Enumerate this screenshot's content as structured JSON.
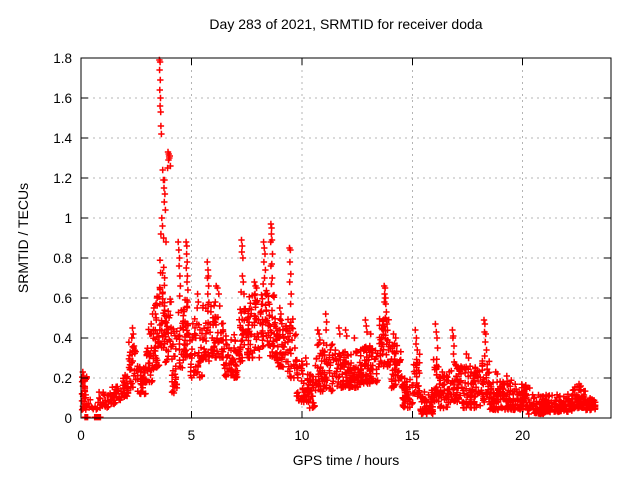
{
  "window": {
    "title": "Day 283 of 2021, SRMTID for receiver doda"
  },
  "chart_data": {
    "type": "scatter",
    "title": "Day 283 of 2021, SRMTID for receiver doda",
    "xlabel": "GPS time / hours",
    "ylabel": "SRMTID / TECUs",
    "xlim": [
      0,
      24
    ],
    "ylim": [
      0,
      1.8
    ],
    "xticks": [
      0,
      5,
      10,
      15,
      20
    ],
    "xtick_labels": [
      "0",
      "5",
      "10",
      "15",
      "20"
    ],
    "yticks": [
      0,
      0.2,
      0.4,
      0.6,
      0.8,
      1.0,
      1.2,
      1.4,
      1.6,
      1.8
    ],
    "ytick_labels": [
      "0",
      "0.2",
      "0.4",
      "0.6",
      "0.8",
      "1",
      "1.2",
      "1.4",
      "1.6",
      "1.8"
    ],
    "grid": true,
    "grid_style": "dashed",
    "grid_color": "#b4b4b4",
    "marker": "plus",
    "marker_color": "#ff0000",
    "border_color": "#000000",
    "legend": "none",
    "noise_seed": 42,
    "column_step_hours": 0.045,
    "points": [
      [
        0.08,
        0.23
      ],
      [
        0.12,
        0.21
      ],
      [
        0.17,
        0.19
      ],
      [
        0.1,
        0.16
      ],
      [
        0.05,
        0.12
      ],
      [
        0.2,
        0.1
      ],
      [
        0.14,
        0.07
      ],
      [
        0.18,
        0.004
      ],
      [
        0.22,
        0.004
      ],
      [
        0.26,
        0.004
      ],
      [
        0.3,
        0.004
      ],
      [
        0.62,
        0.004
      ],
      [
        0.66,
        0.004
      ],
      [
        0.72,
        0.004
      ],
      [
        0.78,
        0.004
      ],
      [
        0.84,
        0.004
      ],
      [
        0.88,
        0.004
      ],
      [
        2.3,
        0.4
      ],
      [
        2.33,
        0.45
      ],
      [
        2.37,
        0.42
      ],
      [
        2.4,
        0.36
      ],
      [
        3.12,
        0.42
      ],
      [
        3.18,
        0.47
      ],
      [
        3.24,
        0.52
      ],
      [
        3.3,
        0.55
      ],
      [
        3.37,
        0.52
      ],
      [
        3.45,
        0.6
      ],
      [
        3.55,
        1.79
      ],
      [
        3.58,
        1.78
      ],
      [
        3.56,
        1.74
      ],
      [
        3.59,
        1.69
      ],
      [
        3.57,
        1.64
      ],
      [
        3.6,
        1.6
      ],
      [
        3.58,
        1.56
      ],
      [
        3.61,
        1.53
      ],
      [
        3.62,
        1.46
      ],
      [
        3.64,
        1.42
      ],
      [
        3.7,
        1.24
      ],
      [
        3.73,
        1.19
      ],
      [
        3.78,
        1.19
      ],
      [
        3.76,
        1.15
      ],
      [
        3.8,
        1.12
      ],
      [
        3.77,
        1.08
      ],
      [
        3.82,
        1.04
      ],
      [
        3.66,
        1.0
      ],
      [
        3.69,
        0.96
      ],
      [
        3.62,
        0.92
      ],
      [
        3.74,
        0.9
      ],
      [
        3.85,
        0.88
      ],
      [
        3.94,
        1.33
      ],
      [
        3.97,
        1.32
      ],
      [
        3.99,
        1.31
      ],
      [
        4.02,
        1.31
      ],
      [
        4.0,
        1.3
      ],
      [
        3.96,
        1.29
      ],
      [
        4.05,
        1.26
      ],
      [
        3.92,
        1.25
      ],
      [
        4.4,
        0.88
      ],
      [
        4.43,
        0.84
      ],
      [
        4.46,
        0.8
      ],
      [
        4.44,
        0.76
      ],
      [
        4.48,
        0.71
      ],
      [
        4.5,
        0.66
      ],
      [
        4.47,
        0.61
      ],
      [
        4.76,
        0.88
      ],
      [
        4.79,
        0.86
      ],
      [
        4.78,
        0.82
      ],
      [
        4.81,
        0.78
      ],
      [
        4.77,
        0.75
      ],
      [
        4.82,
        0.71
      ],
      [
        4.8,
        0.68
      ],
      [
        4.84,
        0.64
      ],
      [
        4.83,
        0.58
      ],
      [
        5.28,
        0.62
      ],
      [
        5.31,
        0.58
      ],
      [
        5.26,
        0.55
      ],
      [
        5.72,
        0.78
      ],
      [
        5.75,
        0.74
      ],
      [
        5.77,
        0.71
      ],
      [
        5.73,
        0.7
      ],
      [
        5.78,
        0.66
      ],
      [
        5.74,
        0.62
      ],
      [
        6.12,
        0.66
      ],
      [
        6.18,
        0.65
      ],
      [
        6.24,
        0.62
      ],
      [
        6.08,
        0.58
      ],
      [
        6.28,
        0.56
      ],
      [
        7.27,
        0.89
      ],
      [
        7.3,
        0.86
      ],
      [
        7.28,
        0.83
      ],
      [
        7.33,
        0.8
      ],
      [
        7.31,
        0.71
      ],
      [
        7.35,
        0.68
      ],
      [
        7.25,
        0.63
      ],
      [
        7.38,
        0.62
      ],
      [
        7.85,
        0.68
      ],
      [
        7.9,
        0.66
      ],
      [
        7.95,
        0.65
      ],
      [
        7.88,
        0.62
      ],
      [
        8.27,
        0.88
      ],
      [
        8.3,
        0.85
      ],
      [
        8.33,
        0.82
      ],
      [
        8.28,
        0.78
      ],
      [
        8.35,
        0.74
      ],
      [
        8.31,
        0.7
      ],
      [
        8.25,
        0.67
      ],
      [
        8.6,
        0.97
      ],
      [
        8.63,
        0.95
      ],
      [
        8.62,
        0.92
      ],
      [
        8.65,
        0.89
      ],
      [
        8.59,
        0.88
      ],
      [
        8.67,
        0.82
      ],
      [
        8.64,
        0.77
      ],
      [
        8.6,
        0.76
      ],
      [
        8.66,
        0.7
      ],
      [
        8.62,
        0.67
      ],
      [
        9.0,
        0.55
      ],
      [
        9.05,
        0.52
      ],
      [
        9.44,
        0.85
      ],
      [
        9.48,
        0.84
      ],
      [
        9.46,
        0.78
      ],
      [
        9.5,
        0.72
      ],
      [
        9.45,
        0.68
      ],
      [
        9.52,
        0.62
      ],
      [
        9.49,
        0.57
      ],
      [
        10.18,
        0.3
      ],
      [
        10.22,
        0.27
      ],
      [
        10.72,
        0.44
      ],
      [
        10.78,
        0.42
      ],
      [
        10.82,
        0.39
      ],
      [
        11.08,
        0.52
      ],
      [
        11.12,
        0.48
      ],
      [
        11.1,
        0.44
      ],
      [
        11.68,
        0.45
      ],
      [
        11.72,
        0.42
      ],
      [
        11.98,
        0.44
      ],
      [
        12.03,
        0.41
      ],
      [
        12.38,
        0.4
      ],
      [
        12.88,
        0.49
      ],
      [
        12.92,
        0.46
      ],
      [
        12.95,
        0.43
      ],
      [
        13.12,
        0.42
      ],
      [
        13.73,
        0.66
      ],
      [
        13.77,
        0.65
      ],
      [
        13.75,
        0.62
      ],
      [
        13.79,
        0.6
      ],
      [
        13.74,
        0.58
      ],
      [
        13.8,
        0.57
      ],
      [
        13.83,
        0.53
      ],
      [
        13.78,
        0.5
      ],
      [
        13.86,
        0.47
      ],
      [
        14.15,
        0.42
      ],
      [
        14.25,
        0.4
      ],
      [
        15.14,
        0.44
      ],
      [
        15.19,
        0.4
      ],
      [
        15.17,
        0.37
      ],
      [
        15.23,
        0.34
      ],
      [
        16.05,
        0.47
      ],
      [
        16.09,
        0.43
      ],
      [
        16.12,
        0.4
      ],
      [
        16.15,
        0.35
      ],
      [
        16.82,
        0.44
      ],
      [
        16.86,
        0.41
      ],
      [
        16.84,
        0.4
      ],
      [
        16.89,
        0.36
      ],
      [
        16.87,
        0.32
      ],
      [
        16.9,
        0.28
      ],
      [
        17.45,
        0.32
      ],
      [
        17.55,
        0.3
      ],
      [
        18.25,
        0.49
      ],
      [
        18.29,
        0.47
      ],
      [
        18.27,
        0.43
      ],
      [
        18.33,
        0.42
      ],
      [
        18.31,
        0.38
      ],
      [
        18.36,
        0.34
      ],
      [
        18.28,
        0.31
      ],
      [
        18.78,
        0.23
      ],
      [
        18.85,
        0.22
      ],
      [
        19.28,
        0.21
      ],
      [
        20.32,
        0.15
      ],
      [
        22.55,
        0.17
      ],
      [
        22.63,
        0.16
      ]
    ],
    "noise_bands": [
      [
        0.03,
        0.28,
        0.04,
        0.22,
        30
      ],
      [
        0.3,
        0.8,
        0.04,
        0.1,
        12
      ],
      [
        0.8,
        1.3,
        0.05,
        0.13,
        25
      ],
      [
        1.3,
        1.8,
        0.07,
        0.16,
        30
      ],
      [
        1.8,
        2.15,
        0.1,
        0.22,
        30
      ],
      [
        2.15,
        2.5,
        0.15,
        0.38,
        30
      ],
      [
        2.5,
        2.95,
        0.12,
        0.26,
        35
      ],
      [
        2.95,
        3.3,
        0.18,
        0.45,
        35
      ],
      [
        3.3,
        3.55,
        0.25,
        0.62,
        30
      ],
      [
        3.55,
        3.8,
        0.35,
        0.85,
        35
      ],
      [
        3.8,
        4.1,
        0.25,
        0.6,
        30
      ],
      [
        4.1,
        4.4,
        0.12,
        0.45,
        30
      ],
      [
        4.4,
        4.65,
        0.25,
        0.55,
        25
      ],
      [
        4.65,
        4.95,
        0.3,
        0.6,
        30
      ],
      [
        4.95,
        5.5,
        0.2,
        0.5,
        45
      ],
      [
        5.5,
        6.05,
        0.28,
        0.58,
        45
      ],
      [
        6.05,
        6.45,
        0.3,
        0.52,
        35
      ],
      [
        6.45,
        7.1,
        0.2,
        0.42,
        55
      ],
      [
        7.1,
        7.55,
        0.28,
        0.55,
        40
      ],
      [
        7.55,
        8.15,
        0.3,
        0.62,
        55
      ],
      [
        8.15,
        8.55,
        0.35,
        0.65,
        40
      ],
      [
        8.55,
        8.85,
        0.3,
        0.62,
        30
      ],
      [
        8.85,
        9.35,
        0.25,
        0.5,
        45
      ],
      [
        9.35,
        9.75,
        0.2,
        0.5,
        35
      ],
      [
        9.75,
        10.15,
        0.08,
        0.3,
        35
      ],
      [
        10.15,
        10.6,
        0.05,
        0.22,
        40
      ],
      [
        10.6,
        11.45,
        0.13,
        0.38,
        75
      ],
      [
        11.45,
        12.65,
        0.15,
        0.34,
        110
      ],
      [
        12.65,
        13.45,
        0.17,
        0.37,
        75
      ],
      [
        13.45,
        13.95,
        0.25,
        0.5,
        45
      ],
      [
        13.95,
        14.55,
        0.15,
        0.4,
        55
      ],
      [
        14.55,
        15.05,
        0.05,
        0.2,
        45
      ],
      [
        15.05,
        15.35,
        0.1,
        0.32,
        25
      ],
      [
        15.35,
        15.95,
        0.02,
        0.14,
        55
      ],
      [
        15.95,
        16.25,
        0.08,
        0.3,
        25
      ],
      [
        16.25,
        16.75,
        0.05,
        0.24,
        45
      ],
      [
        16.75,
        17.05,
        0.08,
        0.28,
        28
      ],
      [
        17.05,
        18.15,
        0.05,
        0.26,
        100
      ],
      [
        18.15,
        18.5,
        0.08,
        0.3,
        32
      ],
      [
        18.5,
        19.55,
        0.04,
        0.19,
        95
      ],
      [
        19.55,
        20.25,
        0.04,
        0.17,
        65
      ],
      [
        20.25,
        21.0,
        0.02,
        0.12,
        65
      ],
      [
        21.0,
        22.25,
        0.03,
        0.12,
        110
      ],
      [
        22.25,
        22.85,
        0.05,
        0.16,
        55
      ],
      [
        22.85,
        23.3,
        0.04,
        0.1,
        40
      ]
    ]
  }
}
